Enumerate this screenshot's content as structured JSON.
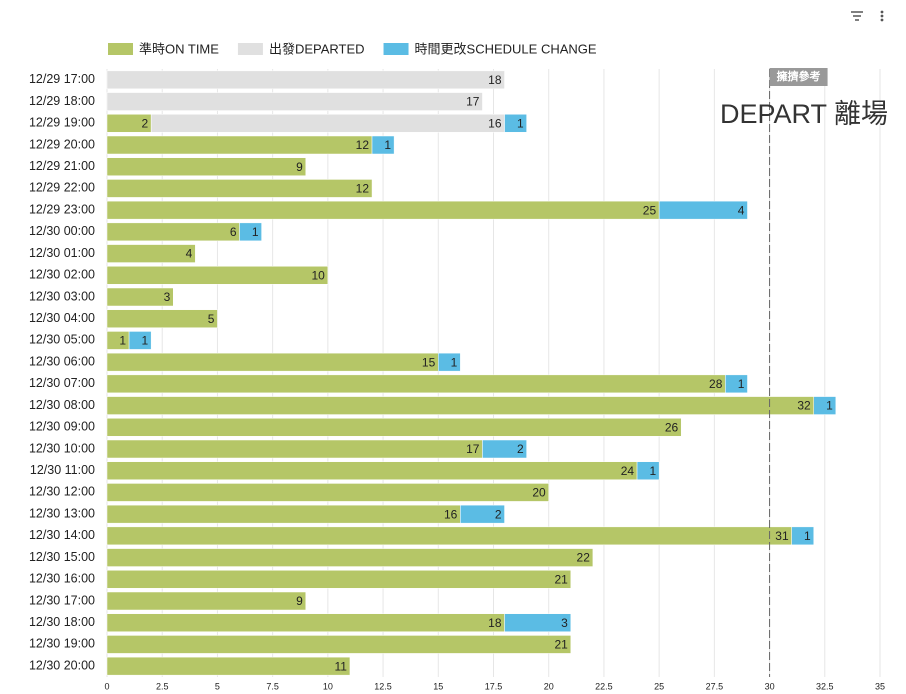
{
  "chart_data": {
    "type": "stacked-bar-horizontal",
    "categories": [
      "12/29 17:00",
      "12/29 18:00",
      "12/29 19:00",
      "12/29 20:00",
      "12/29 21:00",
      "12/29 22:00",
      "12/29 23:00",
      "12/30 00:00",
      "12/30 01:00",
      "12/30 02:00",
      "12/30 03:00",
      "12/30 04:00",
      "12/30 05:00",
      "12/30 06:00",
      "12/30 07:00",
      "12/30 08:00",
      "12/30 09:00",
      "12/30 10:00",
      "12/30 11:00",
      "12/30 12:00",
      "12/30 13:00",
      "12/30 14:00",
      "12/30 15:00",
      "12/30 16:00",
      "12/30 17:00",
      "12/30 18:00",
      "12/30 19:00",
      "12/30 20:00"
    ],
    "series": [
      {
        "name": "準時ON TIME",
        "color": "#b5c667",
        "values": [
          null,
          null,
          2,
          12,
          9,
          12,
          25,
          6,
          4,
          10,
          3,
          5,
          1,
          15,
          28,
          32,
          26,
          17,
          24,
          20,
          16,
          31,
          22,
          21,
          9,
          18,
          21,
          11
        ]
      },
      {
        "name": "出發DEPARTED",
        "color": "#e0e0e0",
        "values": [
          18,
          17,
          16,
          null,
          null,
          null,
          null,
          null,
          null,
          null,
          null,
          null,
          null,
          null,
          null,
          null,
          null,
          null,
          null,
          null,
          null,
          null,
          null,
          null,
          null,
          null,
          null,
          null
        ]
      },
      {
        "name": "時間更改SCHEDULE CHANGE",
        "color": "#5bbce4",
        "values": [
          null,
          null,
          1,
          1,
          null,
          null,
          4,
          1,
          null,
          null,
          null,
          null,
          1,
          1,
          1,
          1,
          null,
          2,
          1,
          null,
          2,
          1,
          null,
          null,
          null,
          3,
          null,
          null
        ]
      }
    ],
    "xlim": [
      0,
      35
    ],
    "xticks": [
      0,
      2.5,
      5,
      7.5,
      10,
      12.5,
      15,
      17.5,
      20,
      22.5,
      25,
      27.5,
      30,
      32.5,
      35
    ],
    "grid": true,
    "legend": "top",
    "reference_line": {
      "value": 30,
      "label": "擁擠參考",
      "color": "#999999"
    },
    "annotation": "DEPART 離場"
  }
}
